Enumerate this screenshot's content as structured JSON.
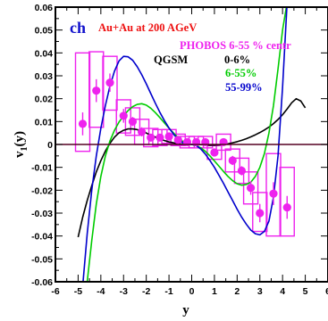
{
  "chart_data": {
    "type": "scatter",
    "xlabel": "y",
    "ylabel": "v1(y)",
    "ylabel_main": "v",
    "ylabel_sub": "1",
    "ylabel_rest": "(y)",
    "xlim": [
      -6,
      6
    ],
    "ylim": [
      -0.06,
      0.06
    ],
    "x_ticks": [
      -6,
      -5,
      -4,
      -3,
      -2,
      -1,
      0,
      1,
      2,
      3,
      4,
      5,
      6
    ],
    "x_tick_labels": [
      "-6",
      "-5",
      "-4",
      "-3",
      "-2",
      "-1",
      "0",
      "1",
      "2",
      "3",
      "4",
      "5",
      "6"
    ],
    "y_ticks": [
      -0.06,
      -0.05,
      -0.04,
      -0.03,
      -0.02,
      -0.01,
      0,
      0.01,
      0.02,
      0.03,
      0.04,
      0.05,
      0.06
    ],
    "y_tick_labels": [
      "-0.06",
      "-0.05",
      "-0.04",
      "-0.03",
      "-0.02",
      "-0.01",
      "0",
      "0.01",
      "0.02",
      "0.03",
      "0.04",
      "0.05",
      "0.06"
    ],
    "grid": false,
    "annotations": {
      "ch": "ch",
      "system": "Au+Au at 200 AGeV",
      "phobos": "PHOBOS 6-55 % centr",
      "qgsm": "QGSM",
      "c1": "0-6%",
      "c2": "6-55%",
      "c3": "55-99%"
    },
    "colors": {
      "phobos": "#ee22ee",
      "system": "#ee1111",
      "ch": "#1111cc",
      "c1": "#000000",
      "c2": "#00cc00",
      "c3": "#0000cc"
    },
    "series": [
      {
        "name": "PHOBOS 6-55 % centr",
        "kind": "points",
        "points": [
          {
            "x": -4.8,
            "y": 0.009,
            "err": 0.005,
            "sys_lo": -0.003,
            "sys_hi": 0.04
          },
          {
            "x": -4.2,
            "y": 0.0235,
            "err": 0.005,
            "sys_lo": 0.0075,
            "sys_hi": 0.0405
          },
          {
            "x": -3.6,
            "y": 0.027,
            "err": 0.004,
            "sys_lo": 0.015,
            "sys_hi": 0.0385
          },
          {
            "x": -3.0,
            "y": 0.0125,
            "err": 0.003,
            "sys_lo": 0.005,
            "sys_hi": 0.0195
          },
          {
            "x": -2.6,
            "y": 0.01,
            "err": 0.002,
            "sys_lo": 0.004,
            "sys_hi": 0.016
          },
          {
            "x": -2.2,
            "y": 0.0055,
            "err": 0.002,
            "sys_lo": 0.0,
            "sys_hi": 0.011
          },
          {
            "x": -1.8,
            "y": 0.003,
            "err": 0.0015,
            "sys_lo": -0.001,
            "sys_hi": 0.007
          },
          {
            "x": -1.4,
            "y": 0.003,
            "err": 0.0015,
            "sys_lo": -0.0005,
            "sys_hi": 0.0065
          },
          {
            "x": -1.0,
            "y": 0.0035,
            "err": 0.0015,
            "sys_lo": 0.0005,
            "sys_hi": 0.0065
          },
          {
            "x": -0.6,
            "y": 0.002,
            "err": 0.0015,
            "sys_lo": -0.0005,
            "sys_hi": 0.0045
          },
          {
            "x": -0.2,
            "y": 0.001,
            "err": 0.0015,
            "sys_lo": -0.0015,
            "sys_hi": 0.0035
          },
          {
            "x": 0.2,
            "y": 0.001,
            "err": 0.0015,
            "sys_lo": -0.0015,
            "sys_hi": 0.0035
          },
          {
            "x": 0.6,
            "y": 0.001,
            "err": 0.0015,
            "sys_lo": -0.0015,
            "sys_hi": 0.0035
          },
          {
            "x": 1.0,
            "y": -0.0035,
            "err": 0.0015,
            "sys_lo": -0.0065,
            "sys_hi": -0.0005
          },
          {
            "x": 1.4,
            "y": 0.001,
            "err": 0.0015,
            "sys_lo": -0.0025,
            "sys_hi": 0.0045
          },
          {
            "x": 1.8,
            "y": -0.007,
            "err": 0.002,
            "sys_lo": -0.012,
            "sys_hi": -0.002
          },
          {
            "x": 2.2,
            "y": -0.0115,
            "err": 0.002,
            "sys_lo": -0.017,
            "sys_hi": -0.006
          },
          {
            "x": 2.6,
            "y": -0.019,
            "err": 0.003,
            "sys_lo": -0.026,
            "sys_hi": -0.012
          },
          {
            "x": 3.0,
            "y": -0.03,
            "err": 0.004,
            "sys_lo": -0.038,
            "sys_hi": -0.021
          },
          {
            "x": 3.6,
            "y": -0.0215,
            "err": 0.005,
            "sys_lo": -0.04,
            "sys_hi": -0.004
          },
          {
            "x": 4.2,
            "y": -0.0275,
            "err": 0.005,
            "sys_lo": -0.04,
            "sys_hi": -0.01
          }
        ]
      },
      {
        "name": "0-6%",
        "kind": "line",
        "x": [
          -5.0,
          -4.8,
          -4.6,
          -4.4,
          -4.2,
          -4.0,
          -3.8,
          -3.6,
          -3.4,
          -3.2,
          -3.0,
          -2.8,
          -2.6,
          -2.4,
          -2.2,
          -2.0,
          -1.8,
          -1.6,
          -1.4,
          -1.2,
          -1.0,
          -0.8,
          -0.6,
          -0.4,
          -0.2,
          0.0,
          0.2,
          0.4,
          0.6,
          0.8,
          1.0,
          1.2,
          1.4,
          1.6,
          1.8,
          2.0,
          2.2,
          2.4,
          2.6,
          2.8,
          3.0,
          3.2,
          3.4,
          3.6,
          3.8,
          4.0,
          4.2,
          4.4,
          4.6,
          4.8,
          5.0
        ],
        "y": [
          -0.0405,
          -0.0318,
          -0.0245,
          -0.018,
          -0.012,
          -0.0071,
          -0.0029,
          0.0005,
          0.0032,
          0.0051,
          0.0062,
          0.0068,
          0.0068,
          0.0065,
          0.0058,
          0.005,
          0.004,
          0.0032,
          0.0024,
          0.0017,
          0.0011,
          0.0007,
          0.0003,
          0.0001,
          0.0,
          0.0,
          0.0,
          -0.0001,
          -0.0002,
          -0.0003,
          -0.0003,
          -0.0002,
          0.0,
          0.0003,
          0.0007,
          0.0012,
          0.0018,
          0.0025,
          0.0033,
          0.0042,
          0.0052,
          0.0063,
          0.0076,
          0.0091,
          0.0109,
          0.013,
          0.0155,
          0.0182,
          0.02,
          0.019,
          0.016
        ]
      },
      {
        "name": "6-55%",
        "kind": "line",
        "x": [
          -4.6,
          -4.4,
          -4.2,
          -4.0,
          -3.8,
          -3.6,
          -3.4,
          -3.2,
          -3.0,
          -2.8,
          -2.6,
          -2.4,
          -2.2,
          -2.0,
          -1.8,
          -1.6,
          -1.4,
          -1.2,
          -1.0,
          -0.8,
          -0.6,
          -0.4,
          -0.2,
          0.0,
          0.2,
          0.4,
          0.6,
          0.8,
          1.0,
          1.2,
          1.4,
          1.6,
          1.8,
          2.0,
          2.2,
          2.4,
          2.6,
          2.8,
          3.0,
          3.2,
          3.4,
          3.6,
          3.8,
          4.0,
          4.2
        ],
        "y": [
          -0.06,
          -0.042,
          -0.026,
          -0.014,
          -0.005,
          0.0015,
          0.0062,
          0.0098,
          0.0125,
          0.0148,
          0.0165,
          0.0175,
          0.0178,
          0.0172,
          0.0158,
          0.0139,
          0.0117,
          0.0094,
          0.0071,
          0.005,
          0.003,
          0.0014,
          0.0003,
          0.0,
          -0.0005,
          -0.0015,
          -0.003,
          -0.005,
          -0.0072,
          -0.0095,
          -0.0118,
          -0.014,
          -0.0158,
          -0.0172,
          -0.0178,
          -0.0175,
          -0.0165,
          -0.014,
          -0.01,
          -0.004,
          0.005,
          0.017,
          0.033,
          0.05,
          0.062
        ]
      },
      {
        "name": "55-99%",
        "kind": "line",
        "x": [
          -4.8,
          -4.6,
          -4.4,
          -4.2,
          -4.0,
          -3.8,
          -3.6,
          -3.4,
          -3.2,
          -3.0,
          -2.8,
          -2.6,
          -2.4,
          -2.2,
          -2.0,
          -1.8,
          -1.6,
          -1.4,
          -1.2,
          -1.0,
          -0.8,
          -0.6,
          -0.4,
          -0.2,
          0.0,
          0.2,
          0.4,
          0.6,
          0.8,
          1.0,
          1.2,
          1.4,
          1.6,
          1.8,
          2.0,
          2.2,
          2.4,
          2.6,
          2.8,
          3.0,
          3.2,
          3.4,
          3.6,
          3.8,
          4.0,
          4.2
        ],
        "y": [
          -0.062,
          -0.039,
          -0.02,
          -0.005,
          0.007,
          0.017,
          0.0255,
          0.032,
          0.0365,
          0.0385,
          0.0383,
          0.0368,
          0.034,
          0.0305,
          0.0265,
          0.0222,
          0.018,
          0.014,
          0.0104,
          0.0072,
          0.0045,
          0.0022,
          0.0008,
          0.0002,
          0.0,
          -0.0005,
          -0.002,
          -0.0042,
          -0.007,
          -0.01,
          -0.0135,
          -0.017,
          -0.0208,
          -0.0245,
          -0.0283,
          -0.0318,
          -0.0348,
          -0.0374,
          -0.039,
          -0.0395,
          -0.038,
          -0.0335,
          -0.023,
          -0.005,
          0.025,
          0.062
        ]
      }
    ]
  }
}
